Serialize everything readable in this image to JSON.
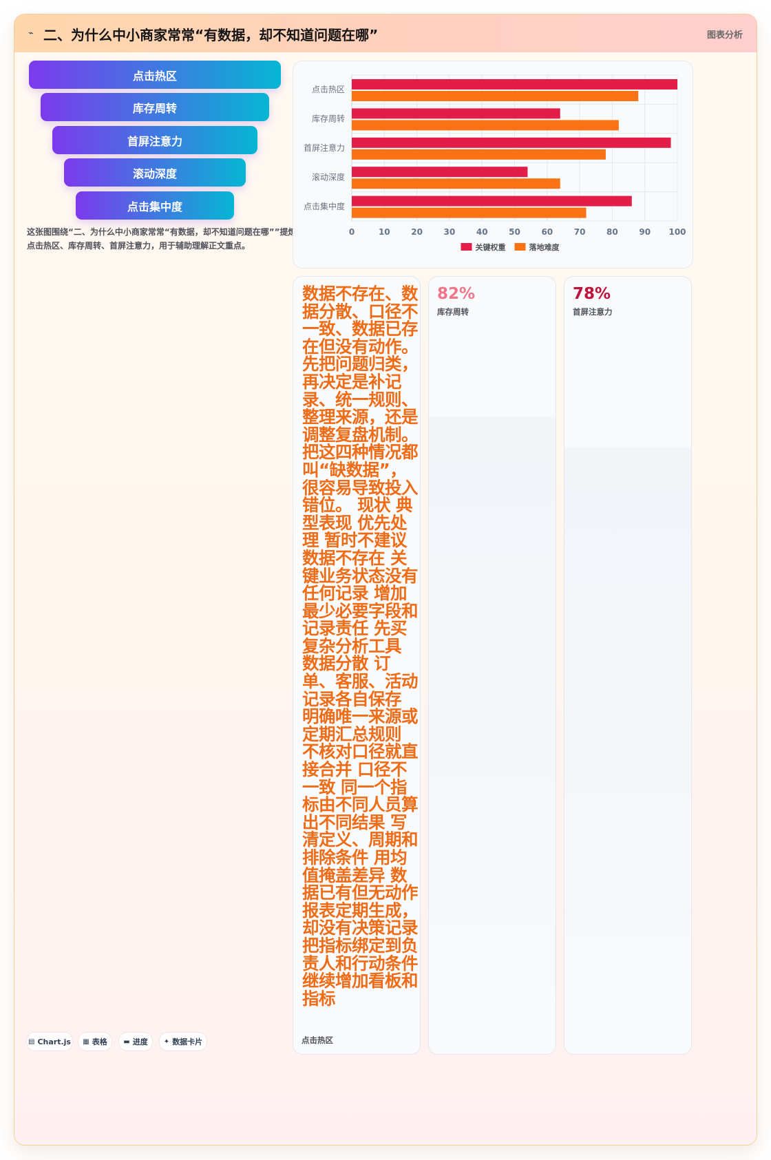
{
  "header": {
    "icon": "spark-icon",
    "title": "二、为什么中小商家常常“有数据，却不知道问题在哪”",
    "tag": "图表分析"
  },
  "funnel": {
    "steps": [
      "点击热区",
      "库存周转",
      "首屏注意力",
      "滚动深度",
      "点击集中度"
    ]
  },
  "caption": "这张图围绕“二、为什么中小商家常常“有数据，却不知道问题在哪””提炼点击热区、库存周转、首屏注意力，用于辅助理解正文重点。",
  "colors": {
    "series_key": "#e11d48",
    "series_difficulty": "#f97316",
    "funnel_start": "#7c3aed",
    "funnel_end": "#06b6d4",
    "big_text": "#ef6c17",
    "kpi_1": "#f0758a",
    "kpi_2": "#be123c"
  },
  "chart_data": {
    "type": "bar",
    "orientation": "horizontal",
    "categories": [
      "点击热区",
      "库存周转",
      "首屏注意力",
      "滚动深度",
      "点击集中度"
    ],
    "series": [
      {
        "name": "关键权重",
        "values": [
          100,
          64,
          98,
          54,
          86
        ],
        "color": "#e11d48"
      },
      {
        "name": "落地难度",
        "values": [
          88,
          82,
          78,
          64,
          72
        ],
        "color": "#f97316"
      }
    ],
    "xlim": [
      0,
      100
    ],
    "xticks": [
      "0",
      "10",
      "20",
      "30",
      "40",
      "50",
      "60",
      "70",
      "80",
      "90",
      "100"
    ],
    "grid": true,
    "legend": "bottom"
  },
  "text_panel": {
    "body": "数据不存在、数据分散、口径不一致、数据已存在但没有动作。先把问题归类，再决定是补记录、统一规则、整理来源，还是调整复盘机制。把这四种情况都叫“缺数据”，很容易导致投入错位。 现状 典型表现 优先处理 暂时不建议 数据不存在 关键业务状态没有任何记录 增加最少必要字段和记录责任 先买复杂分析工具 数据分散 订单、客服、活动记录各自保存 明确唯一来源或定期汇总规则 不核对口径就直接合并 口径不一致 同一个指标由不同人员算出不同结果 写清定义、周期和排除条件 用均值掩盖差异 数据已有但无动作 报表定期生成，却没有决策记录 把指标绑定到负责人和行动条件 继续增加看板和指标",
    "label": "点击热区"
  },
  "kpis": [
    {
      "value": "82%",
      "label": "库存周转",
      "fraction": 0.82
    },
    {
      "value": "78%",
      "label": "首屏注意力",
      "fraction": 0.78
    }
  ],
  "pills": [
    {
      "icon": "table-icon",
      "glyph": "▤",
      "label": "Chart.js"
    },
    {
      "icon": "grid-icon",
      "glyph": "▦",
      "label": "表格"
    },
    {
      "icon": "progress-icon",
      "glyph": "▬",
      "label": "进度"
    },
    {
      "icon": "card-icon",
      "glyph": "✦",
      "label": "数据卡片"
    }
  ]
}
